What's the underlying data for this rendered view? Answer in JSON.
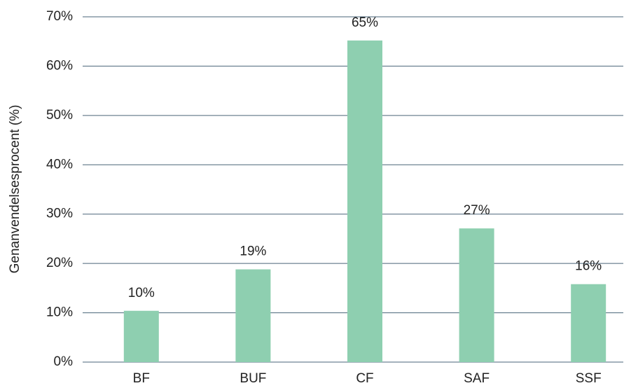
{
  "chart_data": {
    "type": "bar",
    "ylabel": "Genanvendelsesprocent (%)",
    "categories": [
      "BF",
      "BUF",
      "CF",
      "SAF",
      "SSF"
    ],
    "values": [
      10.4,
      18.8,
      65.2,
      27.1,
      15.8
    ],
    "value_labels": [
      "10%",
      "19%",
      "65%",
      "27%",
      "16%"
    ],
    "color": "#8ecfb0",
    "ylim": [
      0,
      70
    ],
    "yticks": [
      {
        "value": 0,
        "label": "0%"
      },
      {
        "value": 10,
        "label": "10%"
      },
      {
        "value": 20,
        "label": "20%"
      },
      {
        "value": 30,
        "label": "30%"
      },
      {
        "value": 40,
        "label": "40%"
      },
      {
        "value": 50,
        "label": "50%"
      },
      {
        "value": 60,
        "label": "60%"
      },
      {
        "value": 70,
        "label": "70%"
      }
    ],
    "grid": true
  }
}
